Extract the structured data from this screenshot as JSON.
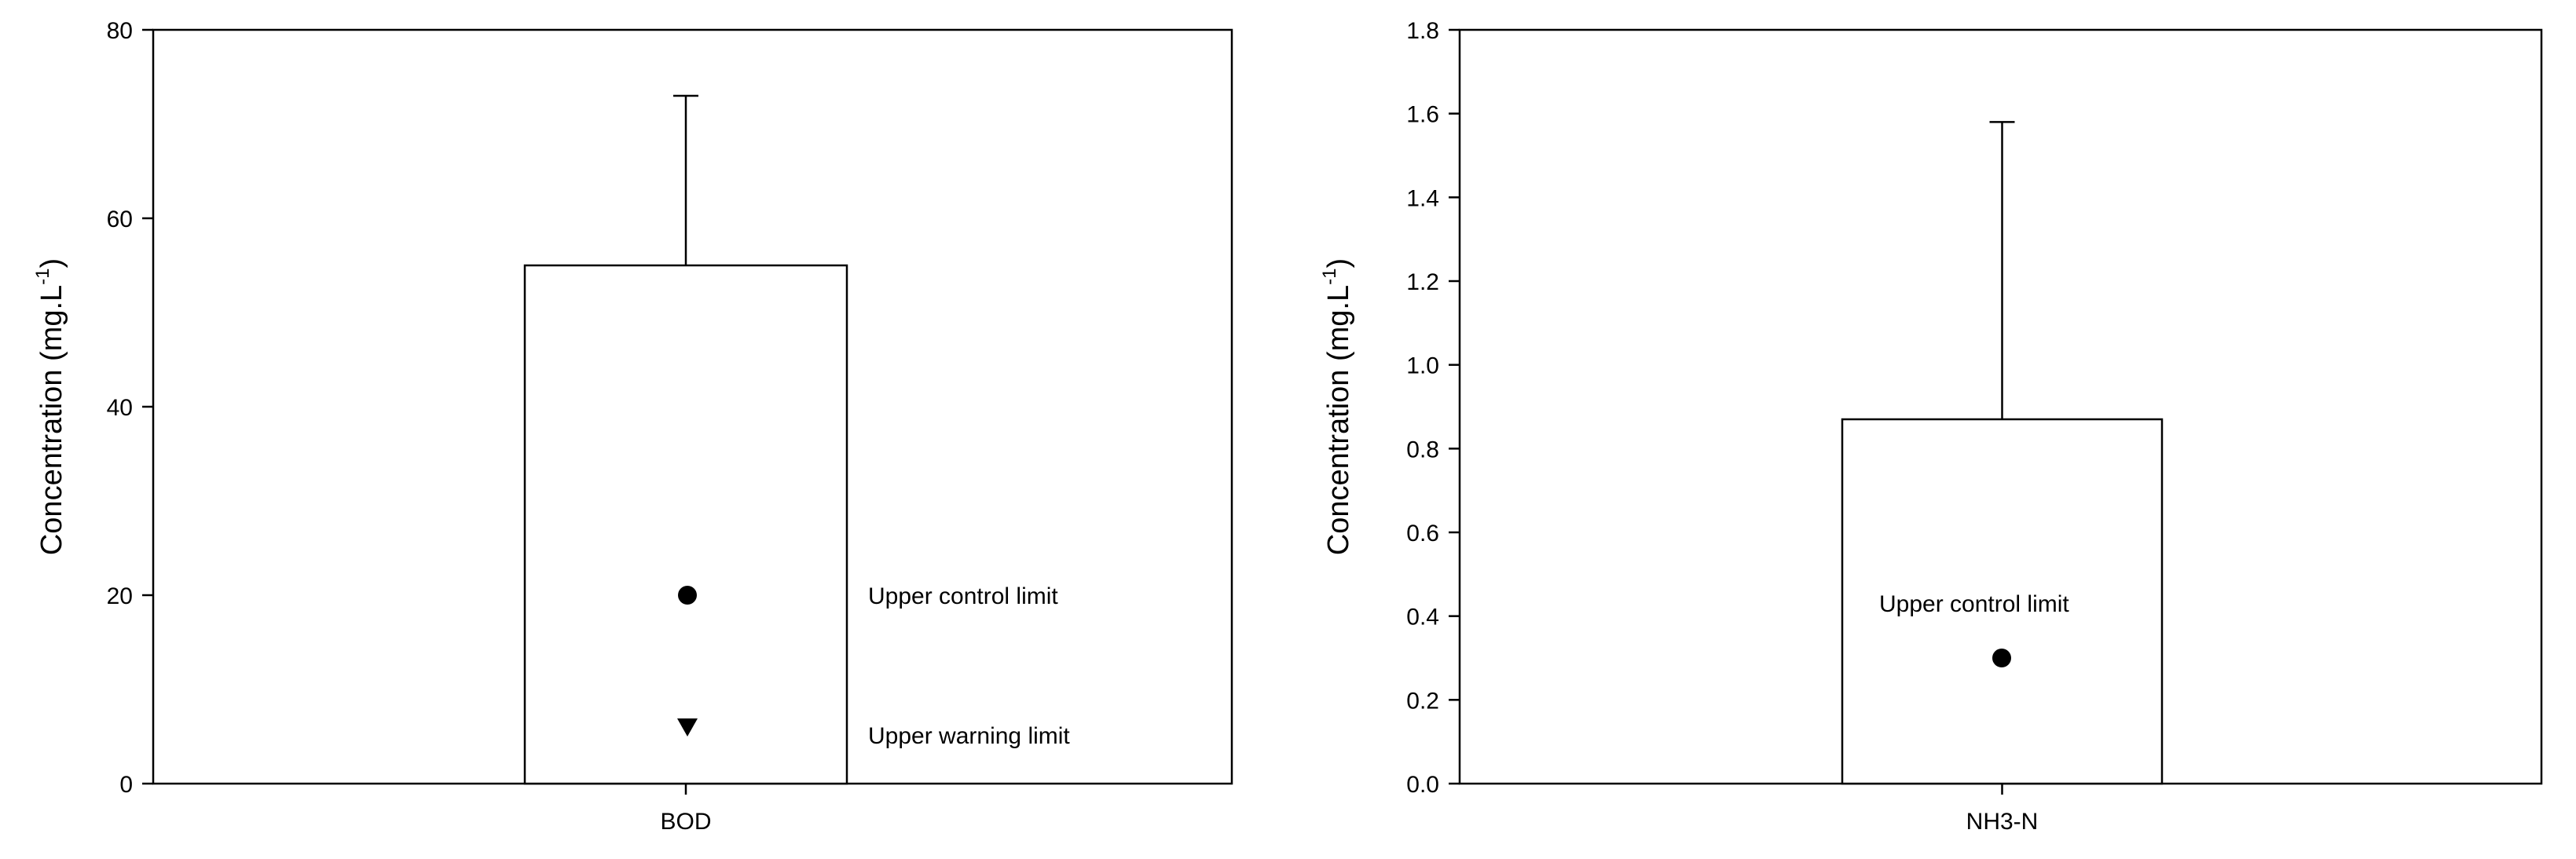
{
  "chart_data": [
    {
      "type": "bar",
      "categories": [
        "BOD"
      ],
      "values": [
        55
      ],
      "error_upper": [
        73
      ],
      "ylabel_main": "Concentration (mg.L",
      "ylabel_sup": "-1",
      "ylabel_close": ")",
      "ylim": [
        0,
        80
      ],
      "yticks": [
        0,
        20,
        40,
        60,
        80
      ],
      "ytick_labels": [
        "0",
        "20",
        "40",
        "60",
        "80"
      ],
      "grid": false,
      "markers": [
        {
          "shape": "circle",
          "value": 20,
          "label": "Upper control limit"
        },
        {
          "shape": "triangle-down",
          "value": 6,
          "label": "Upper warning limit"
        }
      ]
    },
    {
      "type": "bar",
      "categories": [
        "NH3-N"
      ],
      "values": [
        0.87
      ],
      "error_upper": [
        1.58
      ],
      "ylabel_main": "Concentration (mg.L",
      "ylabel_sup": "-1",
      "ylabel_close": ")",
      "ylim": [
        0,
        1.8
      ],
      "yticks": [
        0,
        0.2,
        0.4,
        0.6,
        0.8,
        1.0,
        1.2,
        1.4,
        1.6,
        1.8
      ],
      "ytick_labels": [
        "0.0",
        "0.2",
        "0.4",
        "0.6",
        "0.8",
        "1.0",
        "1.2",
        "1.4",
        "1.6",
        "1.8"
      ],
      "grid": false,
      "markers": [
        {
          "shape": "circle",
          "value": 0.3,
          "label": "Upper control limit"
        }
      ]
    }
  ]
}
